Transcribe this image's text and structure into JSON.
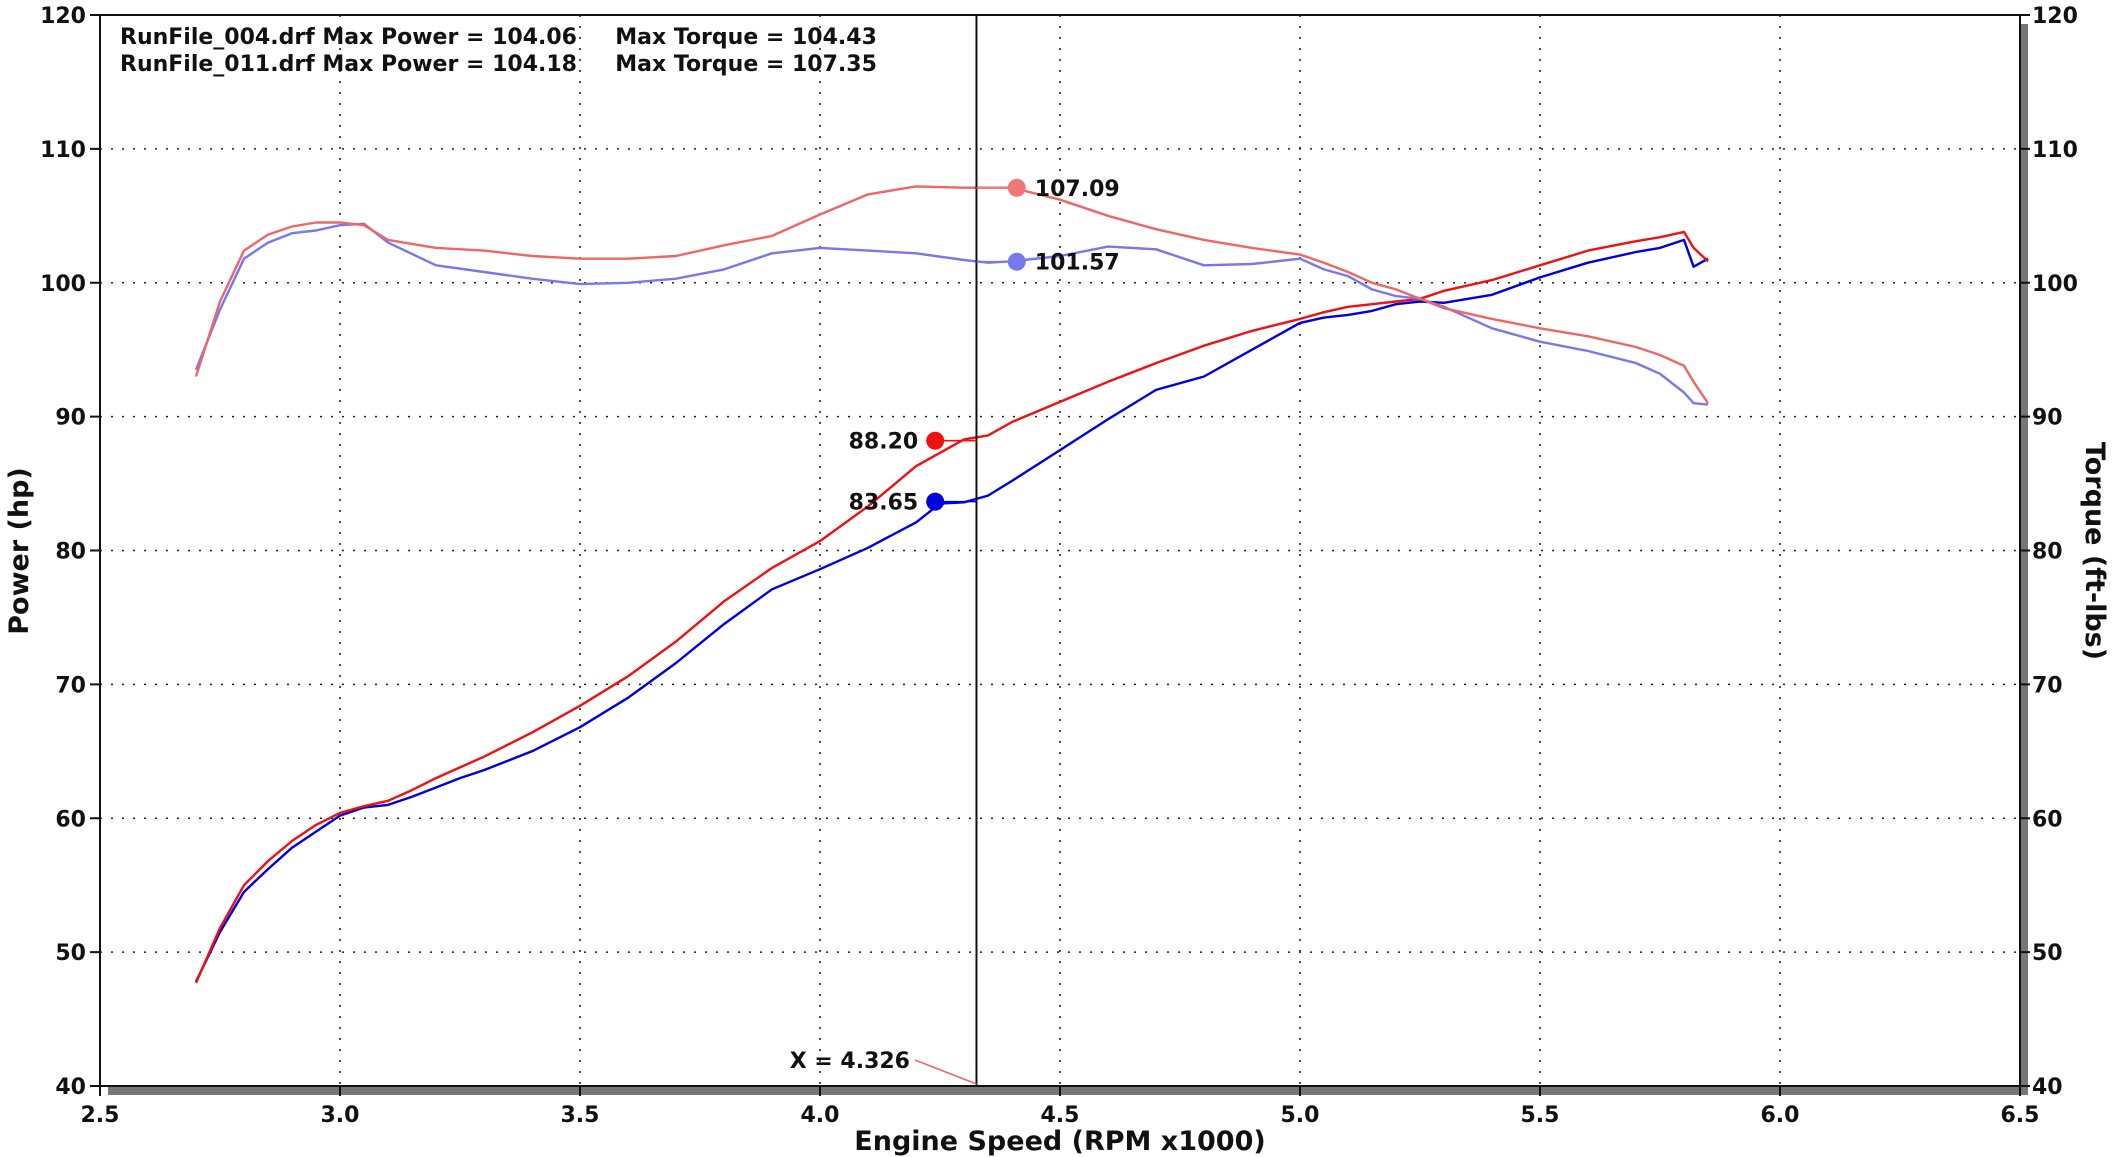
{
  "chart_data": {
    "type": "line",
    "xlabel": "Engine Speed (RPM x1000)",
    "ylabel_left": "Power (hp)",
    "ylabel_right": "Torque (ft-lbs)",
    "xlim": [
      2.5,
      6.5
    ],
    "ylim": [
      40,
      120
    ],
    "x_ticks": [
      "2.5",
      "3.0",
      "3.5",
      "4.0",
      "4.5",
      "5.0",
      "5.5",
      "6.0",
      "6.5"
    ],
    "y_ticks": [
      "40",
      "50",
      "60",
      "70",
      "80",
      "90",
      "100",
      "110",
      "120"
    ],
    "grid": true,
    "legend": [
      "RunFile_004.drf Max Power = 104.06     Max Torque = 104.43",
      "RunFile_011.drf Max Power = 104.18     Max Torque = 107.35"
    ],
    "cursor": {
      "x": 4.326,
      "label": "X = 4.326"
    },
    "series": [
      {
        "kind": "power",
        "color": "#0000dd",
        "x": [
          2.7,
          2.75,
          2.8,
          2.85,
          2.9,
          2.95,
          3.0,
          3.05,
          3.1,
          3.15,
          3.2,
          3.25,
          3.3,
          3.4,
          3.5,
          3.6,
          3.7,
          3.8,
          3.9,
          4.0,
          4.1,
          4.2,
          4.25,
          4.3,
          4.35,
          4.4,
          4.5,
          4.6,
          4.7,
          4.8,
          4.9,
          5.0,
          5.05,
          5.1,
          5.15,
          5.2,
          5.25,
          5.3,
          5.4,
          5.5,
          5.6,
          5.7,
          5.75,
          5.8,
          5.82,
          5.85
        ],
        "y": [
          47.8,
          51.5,
          54.5,
          56.2,
          57.8,
          59.0,
          60.2,
          60.8,
          61.0,
          61.6,
          62.3,
          63.0,
          63.6,
          65.0,
          66.8,
          69.0,
          71.6,
          74.5,
          77.1,
          78.6,
          80.2,
          82.1,
          83.5,
          83.6,
          84.1,
          85.2,
          87.5,
          89.8,
          92.0,
          93.0,
          95.0,
          97.0,
          97.4,
          97.6,
          97.9,
          98.4,
          98.6,
          98.5,
          99.1,
          100.4,
          101.5,
          102.3,
          102.6,
          103.2,
          101.2,
          101.8
        ]
      },
      {
        "kind": "power",
        "color": "#ee1111",
        "x": [
          2.7,
          2.75,
          2.8,
          2.85,
          2.9,
          2.95,
          3.0,
          3.05,
          3.1,
          3.15,
          3.2,
          3.25,
          3.3,
          3.4,
          3.5,
          3.6,
          3.7,
          3.8,
          3.9,
          4.0,
          4.1,
          4.2,
          4.25,
          4.3,
          4.35,
          4.4,
          4.5,
          4.6,
          4.7,
          4.8,
          4.9,
          5.0,
          5.05,
          5.1,
          5.15,
          5.2,
          5.25,
          5.3,
          5.4,
          5.5,
          5.6,
          5.7,
          5.75,
          5.8,
          5.82,
          5.85
        ],
        "y": [
          47.7,
          51.8,
          55.0,
          56.8,
          58.3,
          59.5,
          60.4,
          60.9,
          61.3,
          62.1,
          63.0,
          63.8,
          64.6,
          66.4,
          68.4,
          70.6,
          73.2,
          76.2,
          78.7,
          80.7,
          83.3,
          86.3,
          87.3,
          88.3,
          88.6,
          89.6,
          91.1,
          92.6,
          94.0,
          95.3,
          96.4,
          97.3,
          97.8,
          98.2,
          98.4,
          98.6,
          98.8,
          99.4,
          100.2,
          101.3,
          102.4,
          103.1,
          103.4,
          103.8,
          102.6,
          101.6
        ]
      },
      {
        "kind": "torque",
        "color": "#7777ee",
        "x": [
          2.7,
          2.75,
          2.8,
          2.85,
          2.9,
          2.95,
          3.0,
          3.05,
          3.1,
          3.2,
          3.3,
          3.4,
          3.5,
          3.6,
          3.7,
          3.8,
          3.9,
          4.0,
          4.1,
          4.2,
          4.3,
          4.35,
          4.4,
          4.5,
          4.6,
          4.7,
          4.8,
          4.9,
          5.0,
          5.05,
          5.1,
          5.15,
          5.2,
          5.25,
          5.3,
          5.4,
          5.5,
          5.6,
          5.7,
          5.75,
          5.8,
          5.82,
          5.85
        ],
        "y": [
          93.5,
          98.0,
          101.8,
          103.0,
          103.7,
          103.9,
          104.3,
          104.4,
          103.0,
          101.3,
          100.8,
          100.3,
          99.9,
          100.0,
          100.3,
          101.0,
          102.2,
          102.6,
          102.4,
          102.2,
          101.7,
          101.5,
          101.6,
          102.0,
          102.7,
          102.5,
          101.3,
          101.4,
          101.8,
          101.0,
          100.5,
          99.5,
          99.0,
          98.8,
          98.2,
          96.6,
          95.6,
          94.9,
          94.0,
          93.2,
          91.8,
          91.0,
          90.9
        ]
      },
      {
        "kind": "torque",
        "color": "#ee6666",
        "x": [
          2.7,
          2.75,
          2.8,
          2.85,
          2.9,
          2.95,
          3.0,
          3.05,
          3.1,
          3.2,
          3.3,
          3.4,
          3.5,
          3.6,
          3.7,
          3.8,
          3.9,
          4.0,
          4.1,
          4.2,
          4.3,
          4.35,
          4.4,
          4.5,
          4.6,
          4.7,
          4.8,
          4.9,
          5.0,
          5.05,
          5.1,
          5.15,
          5.2,
          5.25,
          5.3,
          5.4,
          5.5,
          5.6,
          5.7,
          5.75,
          5.8,
          5.82,
          5.85
        ],
        "y": [
          93.0,
          98.6,
          102.4,
          103.6,
          104.2,
          104.5,
          104.5,
          104.3,
          103.2,
          102.6,
          102.4,
          102.0,
          101.8,
          101.8,
          102.0,
          102.8,
          103.5,
          105.1,
          106.6,
          107.2,
          107.1,
          107.1,
          107.1,
          106.2,
          105.0,
          104.0,
          103.2,
          102.6,
          102.1,
          101.5,
          100.8,
          100.0,
          99.5,
          98.8,
          98.1,
          97.3,
          96.6,
          96.0,
          95.2,
          94.6,
          93.8,
          92.6,
          91.0
        ]
      }
    ],
    "markers": [
      {
        "label": "88.20",
        "value": 88.2,
        "x": 4.24,
        "color": "#ee1111",
        "side": "left"
      },
      {
        "label": "83.65",
        "value": 83.65,
        "x": 4.24,
        "color": "#0000dd",
        "side": "left"
      },
      {
        "label": "107.09",
        "value": 107.09,
        "x": 4.41,
        "color": "#ee7777",
        "side": "right"
      },
      {
        "label": "101.57",
        "value": 101.57,
        "x": 4.41,
        "color": "#7777ee",
        "side": "right"
      }
    ]
  }
}
